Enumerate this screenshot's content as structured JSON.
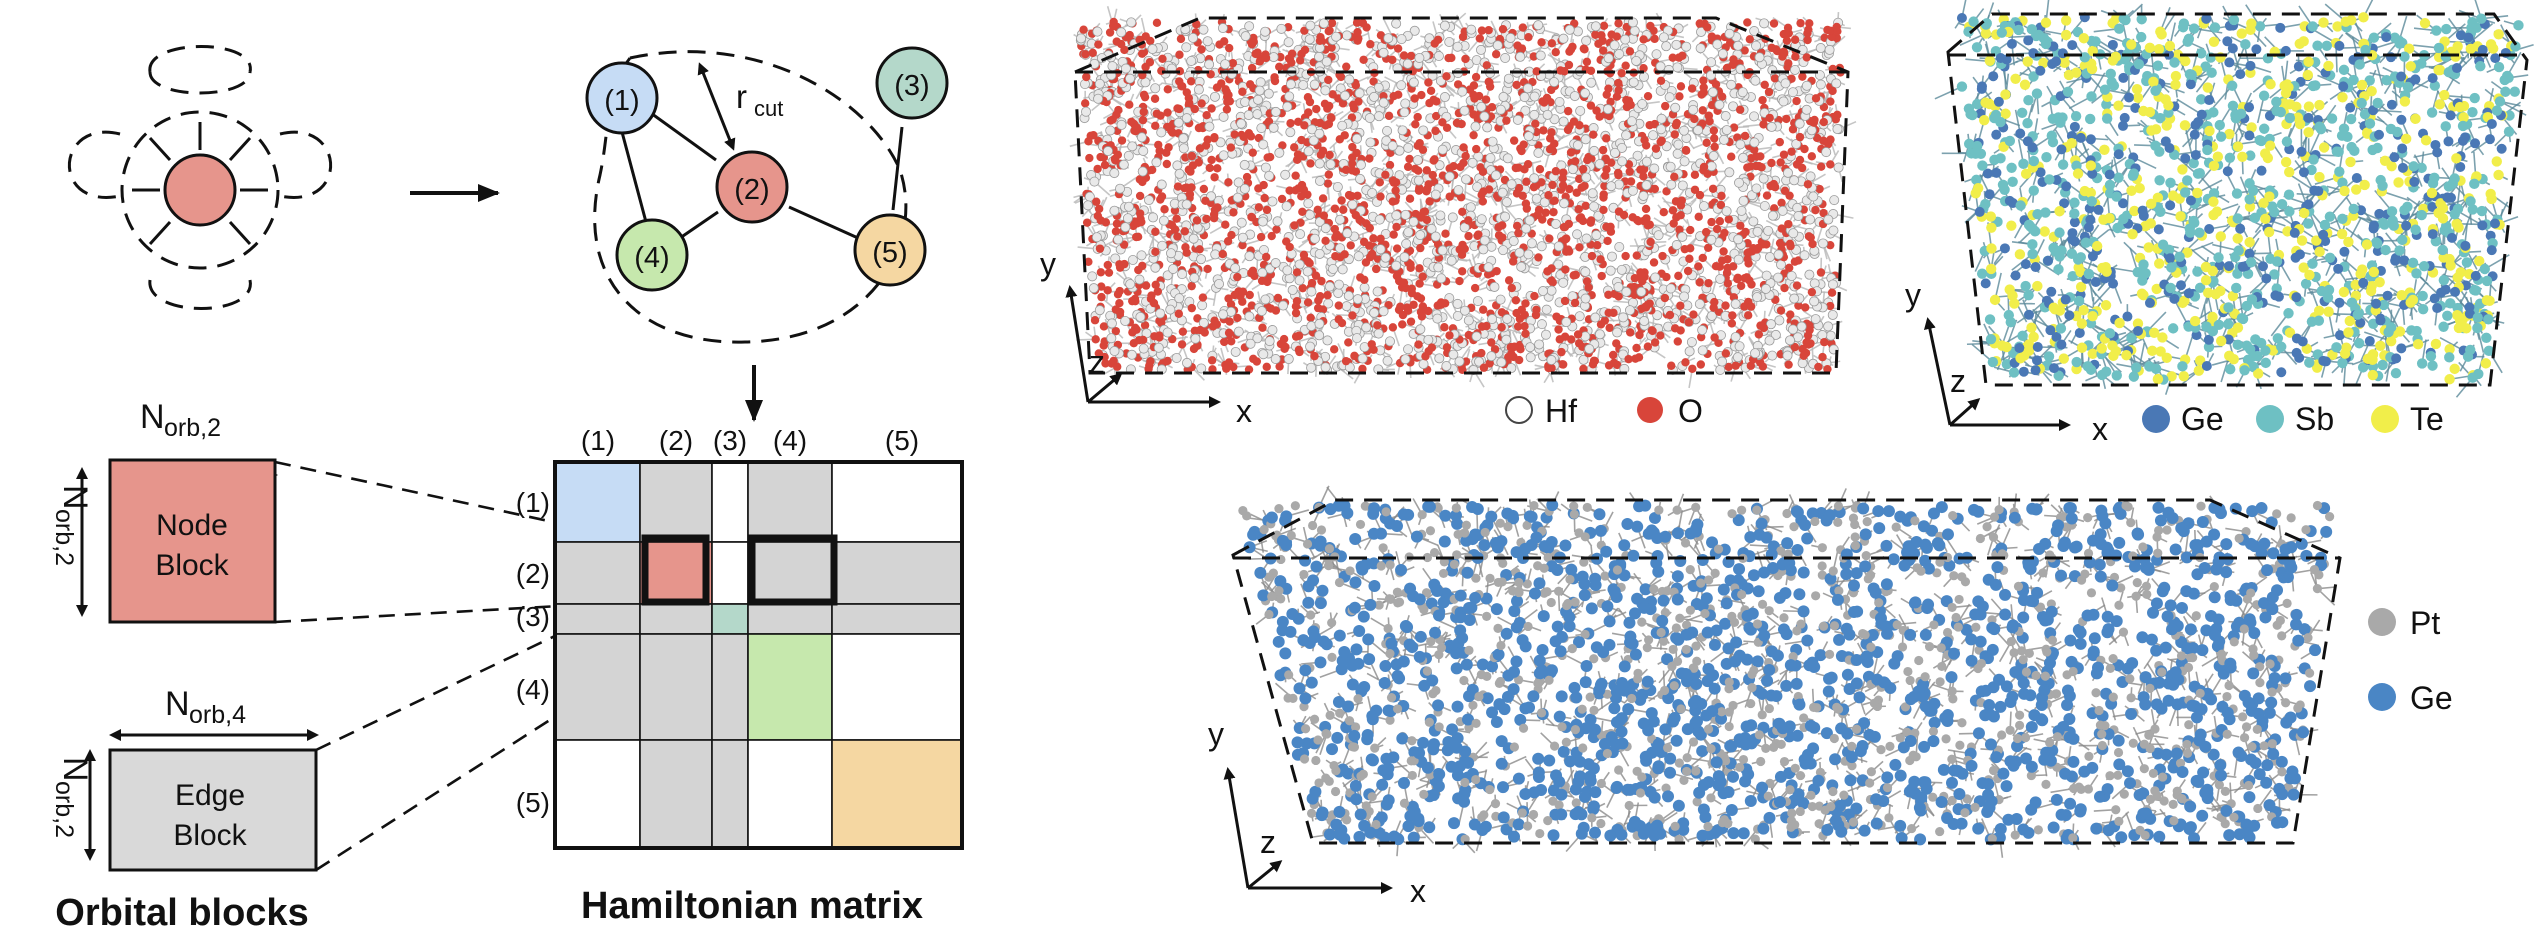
{
  "graph": {
    "cutoff_label": "r",
    "cutoff_sub": "cut",
    "nodes": [
      {
        "id": "n1",
        "label": "(1)",
        "color": "#c6dcf5"
      },
      {
        "id": "n2",
        "label": "(2)",
        "color": "#e6958c"
      },
      {
        "id": "n3",
        "label": "(3)",
        "color": "#b4d8ca"
      },
      {
        "id": "n4",
        "label": "(4)",
        "color": "#c6e8ad"
      },
      {
        "id": "n5",
        "label": "(5)",
        "color": "#f5d7a2"
      }
    ]
  },
  "orbital_blocks": {
    "title": "Orbital blocks",
    "node_block_label": [
      "Node",
      "Block"
    ],
    "edge_block_label": [
      "Edge",
      "Block"
    ],
    "dim_main": "N",
    "dim_node_top_sub": "orb,2",
    "dim_node_side_sub": "orb,2",
    "dim_edge_top_sub": "orb,4",
    "dim_edge_side_sub": "orb,2",
    "node_color": "#e6958c",
    "edge_color": "#d9d9d9"
  },
  "matrix": {
    "title": "Hamiltonian matrix",
    "col_labels": [
      "(1)",
      "(2)",
      "(3)",
      "(4)",
      "(5)"
    ],
    "row_labels": [
      "(1)",
      "(2)",
      "(3)",
      "(4)",
      "(5)"
    ],
    "colors": {
      "grey": "#d4d4d4",
      "blue": "#c6dcf5",
      "red": "#e6958c",
      "teal": "#b4d8ca",
      "green": "#c6e8ad",
      "orange": "#f5d7a2"
    }
  },
  "panels": {
    "hfo2": {
      "legend": [
        {
          "label": "Hf",
          "color": "#ffffff"
        },
        {
          "label": "O",
          "color": "#d8453a"
        }
      ]
    },
    "gst": {
      "legend": [
        {
          "label": "Ge",
          "color": "#4a78b5"
        },
        {
          "label": "Sb",
          "color": "#6ec0c3"
        },
        {
          "label": "Te",
          "color": "#f1ee4a"
        }
      ]
    },
    "ptge": {
      "legend": [
        {
          "label": "Pt",
          "color": "#a9a9a9"
        },
        {
          "label": "Ge",
          "color": "#4a86c5"
        }
      ]
    },
    "axes": {
      "x": "x",
      "y": "y",
      "z": "z"
    }
  }
}
